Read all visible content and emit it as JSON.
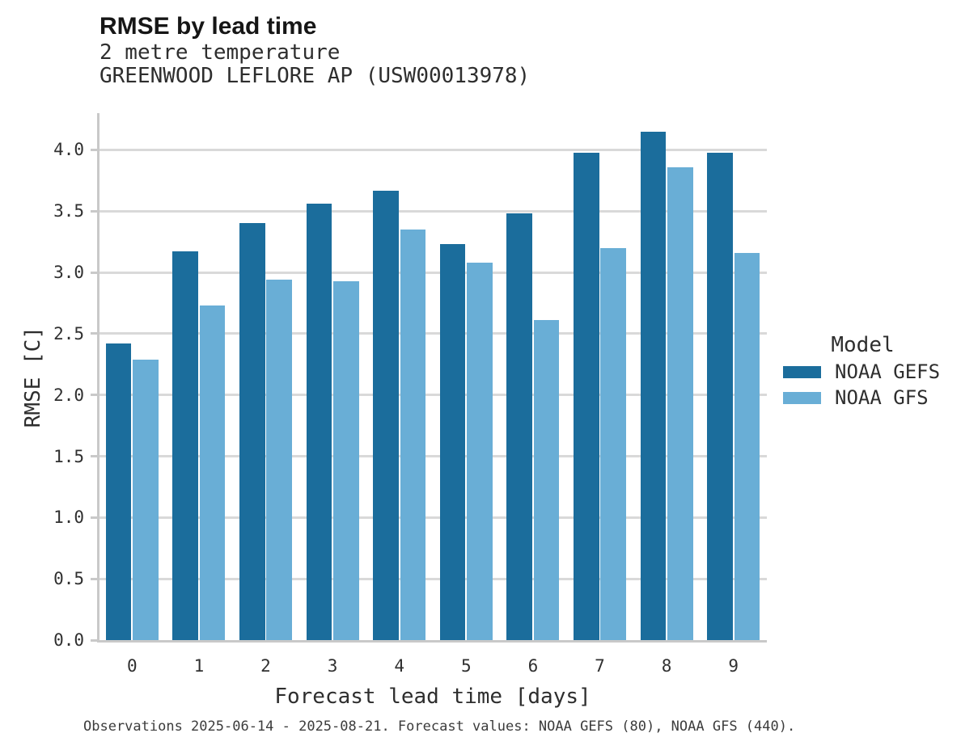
{
  "header": {
    "title": "RMSE by lead time",
    "subtitle1": "2 metre temperature",
    "subtitle2": "GREENWOOD LEFLORE AP (USW00013978)"
  },
  "chart_data": {
    "type": "bar",
    "title": "RMSE by lead time",
    "subtitle": [
      "2 metre temperature",
      "GREENWOOD LEFLORE AP (USW00013978)"
    ],
    "categories": [
      "0",
      "1",
      "2",
      "3",
      "4",
      "5",
      "6",
      "7",
      "8",
      "9"
    ],
    "series": [
      {
        "name": "NOAA GEFS",
        "color": "#1b6d9c",
        "values": [
          2.42,
          3.17,
          3.4,
          3.56,
          3.67,
          3.23,
          3.48,
          3.98,
          4.15,
          3.98
        ]
      },
      {
        "name": "NOAA GFS",
        "color": "#69aed6",
        "values": [
          2.29,
          2.73,
          2.94,
          2.93,
          3.35,
          3.08,
          2.61,
          3.2,
          3.86,
          3.16
        ]
      }
    ],
    "xlabel": "Forecast lead time [days]",
    "ylabel": "RMSE [C]",
    "ylim": [
      0,
      4.3
    ],
    "yticks": [
      0.0,
      0.5,
      1.0,
      1.5,
      2.0,
      2.5,
      3.0,
      3.5,
      4.0
    ],
    "ytick_labels": [
      "0.0",
      "0.5",
      "1.0",
      "1.5",
      "2.0",
      "2.5",
      "3.0",
      "3.5",
      "4.0"
    ],
    "grid": true,
    "legend_title": "Model",
    "legend_position": "right",
    "grid_color": "#d9d9d9",
    "spine_color": "#c9c9c9"
  },
  "footer": {
    "caption": "Observations 2025-06-14 - 2025-08-21. Forecast values: NOAA GEFS (80), NOAA GFS (440)."
  }
}
